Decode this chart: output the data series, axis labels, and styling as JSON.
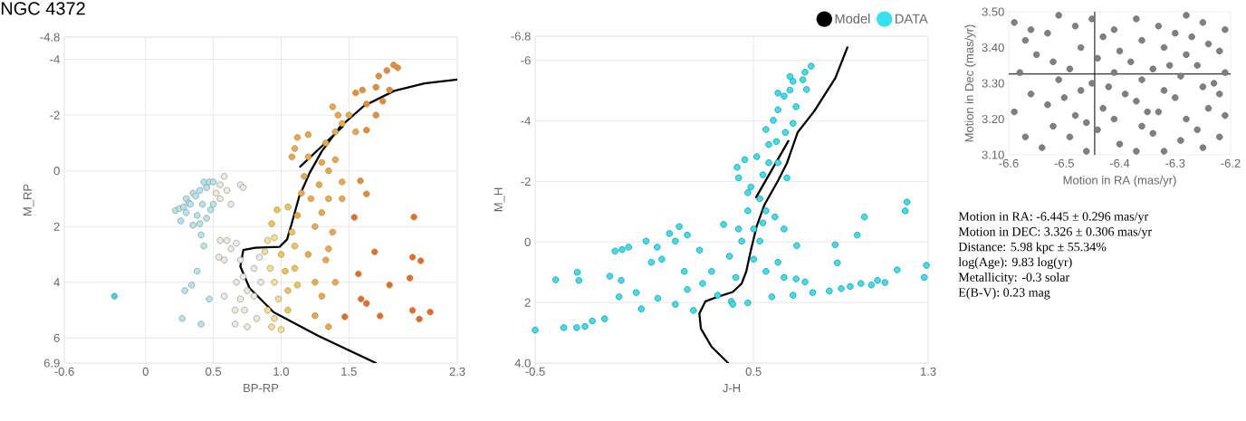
{
  "chart_data": [
    {
      "type": "scatter",
      "title": "NGC 4372",
      "xlabel": "BP-RP",
      "ylabel": "M_RP",
      "xlim": [
        -0.6,
        2.3
      ],
      "ylim": [
        6.9,
        -4.8
      ],
      "xticks": [
        -0.6,
        0,
        0.5,
        {
          "value": 1,
          "label": "1.0"
        },
        1.5,
        2.3
      ],
      "yticks": [
        -4.8,
        -4,
        -2,
        0,
        2,
        4,
        6,
        6.9
      ],
      "grid": true,
      "series": [
        {
          "type": "line",
          "color": "#000000",
          "x": [
            1.7,
            1.278,
            0.944,
            0.766,
            0.699,
            0.721,
            0.81,
            0.988,
            1.044,
            1.077,
            1.133,
            1.211,
            1.3,
            1.433,
            1.611,
            1.834,
            2.057,
            2.3,
            1.8,
            1.455,
            1.14
          ],
          "values": [
            6.9,
            5.93,
            5.07,
            4.2,
            3.43,
            2.84,
            2.76,
            2.73,
            2.46,
            1.91,
            0.93,
            0.07,
            -0.7,
            -1.57,
            -2.33,
            -2.87,
            -3.14,
            -3.28,
            null,
            -1.59,
            -0.15
          ]
        },
        {
          "type": "scatter",
          "marker": "circle",
          "x": [
            0.22,
            0.25,
            0.28,
            0.3,
            0.32,
            0.35,
            0.37,
            0.4,
            0.43,
            0.45,
            0.47,
            0.5,
            0.42,
            0.38,
            0.35,
            0.4,
            0.45,
            0.48,
            0.3,
            0.26,
            0.52,
            0.55,
            0.58,
            0.6,
            0.63,
            0.7,
            0.72,
            0.55,
            0.5,
            0.33,
            0.41,
            0.43,
            0.38,
            0.34,
            0.29,
            0.47,
            0.27,
            0.41,
            0.55,
            0.6,
            0.58,
            0.54,
            0.63,
            0.58,
            -0.23,
            0.67,
            0.7,
            0.72,
            0.67,
            0.7,
            0.66,
            0.73,
            0.66,
            0.75,
            0.75,
            0.8,
            0.8,
            0.82,
            0.85,
            0.84,
            0.88,
            0.9,
            0.95,
            0.92,
            0.95,
            0.98,
            0.9,
            0.95,
            0.93,
            1.0,
            1.0,
            1.03,
            1.05,
            1.05,
            1.08,
            1.1,
            0.97,
            1.05,
            0.93,
            1.1,
            1.12,
            1.12,
            1.15,
            1.17,
            1.2,
            1.22,
            1.25,
            1.2,
            1.25,
            1.3,
            1.28,
            1.3,
            1.33,
            1.35,
            1.35,
            1.38,
            1.33,
            1.3,
            1.4,
            1.42,
            1.38,
            1.45,
            1.45,
            1.4,
            1.35,
            1.25,
            1.35,
            1.5,
            1.55,
            1.1,
            1.12,
            1.08,
            1.2,
            1.4,
            1.45,
            1.55,
            1.6,
            1.63,
            1.7,
            1.72,
            1.78,
            1.83,
            1.86,
            1.8,
            1.75,
            1.7,
            1.63,
            1.585,
            1.63,
            1.54,
            1.57,
            1.59,
            1.63,
            1.47,
            1.73,
            1.8,
            1.95,
            1.97,
            2.03,
            1.97,
            2.02,
            2.1,
            1.98,
            1.69
          ],
          "values": [
            1.42,
            1.35,
            1.3,
            1.0,
            1.15,
            0.8,
            0.9,
            0.7,
            0.4,
            0.6,
            0.4,
            0.4,
            1.2,
            1.6,
            1.95,
            1.9,
            1.7,
            1.4,
            1.5,
            1.8,
            0.8,
            1.0,
            0.2,
            0.7,
            1.2,
            0.5,
            0.6,
            0.5,
            1.2,
            1.2,
            2.3,
            2.7,
            3.6,
            4.1,
            4.3,
            4.6,
            5.3,
            5.5,
            2.5,
            2.5,
            3.2,
            3.1,
            2.8,
            4.5,
            4.5,
            2.6,
            3.2,
            3.8,
            4.0,
            4.6,
            5.0,
            5.0,
            5.5,
            5.6,
            4.3,
            3.5,
            4.5,
            5.3,
            4.0,
            3.1,
            2.9,
            2.5,
            2.4,
            3.5,
            4.0,
            4.6,
            5.0,
            5.3,
            5.6,
            5.7,
            3.0,
            3.6,
            4.3,
            5.0,
            2.2,
            2.7,
            1.4,
            1.3,
            1.9,
            3.5,
            4.1,
            1.6,
            0.8,
            0.2,
            -0.5,
            1.0,
            2.0,
            3.0,
            4.0,
            1.5,
            0.5,
            -0.3,
            -1.0,
            0.0,
            1.0,
            2.2,
            3.2,
            4.5,
            -1.4,
            -2.0,
            -2.3,
            -1.7,
            0.4,
            4.0,
            2.8,
            5.2,
            5.6,
            -2.0,
            -1.4,
            -0.8,
            -1.2,
            -0.5,
            -1.3,
            -0.4,
            1.0,
            -2.8,
            -2.9,
            -2.4,
            -3.0,
            -3.4,
            -3.6,
            -3.8,
            -3.7,
            -2.9,
            -2.5,
            -2.0,
            -1.46,
            0.36,
            0.83,
            1.67,
            3.7,
            4.6,
            4.76,
            5.24,
            5.21,
            4.1,
            3.85,
            3.1,
            3.23,
            5.01,
            5.32,
            5.07,
            1.66,
            2.91
          ],
          "colors": [
            "#aee8ee",
            "#aee8ee",
            "#aee8ee",
            "#aee8ee",
            "#aee8ee",
            "#aee8ee",
            "#aee8ee",
            "#aee8ee",
            "#aee8ee",
            "#aee8ee",
            "#aee8ee",
            "#aee8ee",
            "#aee8ee",
            "#aee8ee",
            "#aee8ee",
            "#aee8ee",
            "#aee8ee",
            "#aee8ee",
            "#aee8ee",
            "#aee8ee",
            "#ebebdf",
            "#ebebdf",
            "#ebebdf",
            "#ebebdf",
            "#ebebdf",
            "#ebebdf",
            "#ebebdf",
            "#ebebdf",
            "#aee8ee",
            "#aee8ee",
            "#aee8ee",
            "#aee8ee",
            "#aee8ee",
            "#aee8ee",
            "#aee8ee",
            "#aee8ee",
            "#aee8ee",
            "#aee8ee",
            "#ebebdf",
            "#ebebdf",
            "#ebebdf",
            "#ebebdf",
            "#ebebdf",
            "#ebebdf",
            "#33d6ea",
            "#ebebdf",
            "#ebebdf",
            "#ebebdf",
            "#ebebdf",
            "#ebebdf",
            "#ebebdf",
            "#ebebdf",
            "#ebebdf",
            "#ebebdf",
            "#ebebdf",
            "#ebebdf",
            "#ebebdf",
            "#ebebdf",
            "#ebebdf",
            "#ebebdf",
            "#f8df88",
            "#f8df88",
            "#f8df88",
            "#f8df88",
            "#f8df88",
            "#f8df88",
            "#f8df88",
            "#f8df88",
            "#f8df88",
            "#f8df88",
            "#f6c445",
            "#f6c445",
            "#f6c445",
            "#f6c445",
            "#f6c445",
            "#f6c445",
            "#f6c445",
            "#f6c445",
            "#f6c445",
            "#f6c445",
            "#f6c445",
            "#f5a636",
            "#f5a636",
            "#f5a636",
            "#f5a636",
            "#f5a636",
            "#f5a636",
            "#f5a636",
            "#f5a636",
            "#f5a636",
            "#f5a636",
            "#f5a636",
            "#f5a636",
            "#f5a636",
            "#f5a636",
            "#f5a636",
            "#f5a636",
            "#f5a636",
            "#f5a636",
            "#f5a636",
            "#f5a636",
            "#f5a636",
            "#f5a636",
            "#f5a636",
            "#f5a636",
            "#f5a636",
            "#f5a636",
            "#f5a636",
            "#f5a636",
            "#f5a636",
            "#f5a636",
            "#f5a636",
            "#f5a636",
            "#f5a636",
            "#f5a636",
            "#f08a22",
            "#f08a22",
            "#f08a22",
            "#f08a22",
            "#f08a22",
            "#f08a22",
            "#f08a22",
            "#f08a22",
            "#f08a22",
            "#f08a22",
            "#f08a22",
            "#f08a22",
            "#f08a22",
            "#f08a22",
            "#f06a12",
            "#f06a12",
            "#f06a12",
            "#f06a12",
            "#f06a12",
            "#f06a12",
            "#f06a12",
            "#f06a12",
            "#f06a12",
            "#f06a12",
            "#f06a12",
            "#f06a12",
            "#f06a12",
            "#f06a12",
            "#f06a12"
          ]
        }
      ]
    },
    {
      "type": "scatter",
      "xlabel": "J-H",
      "ylabel": "M_H",
      "xlim": [
        -0.5,
        1.3
      ],
      "ylim": [
        4.0,
        -6.8
      ],
      "xticks": [
        -0.5,
        0.5,
        1.3
      ],
      "yticks": [
        -6.8,
        -6,
        -4,
        -2,
        0,
        2,
        {
          "value": 4,
          "label": "4.0"
        }
      ],
      "grid": true,
      "legend": "top right",
      "series": [
        {
          "type": "line",
          "name": "Model",
          "color": "#000000",
          "x": [
            0.384,
            0.308,
            0.259,
            0.252,
            0.28,
            0.336,
            0.405,
            0.446,
            0.467,
            0.488,
            0.515,
            0.55,
            0.612,
            0.654,
            0.702,
            0.778,
            0.875,
            0.93,
            0.8,
            0.66,
            0.512
          ],
          "values": [
            4.0,
            3.46,
            2.86,
            2.36,
            1.96,
            1.81,
            1.65,
            1.37,
            0.97,
            0.27,
            -0.53,
            -1.23,
            -2.02,
            -2.62,
            -3.62,
            -4.32,
            -5.42,
            -6.43,
            null,
            -3.34,
            -1.48
          ]
        },
        {
          "type": "scatter",
          "name": "DATA",
          "color": "#36e2f0",
          "marker": "circle",
          "x": [
            -0.406,
            -0.307,
            -0.3,
            -0.369,
            -0.31,
            -0.272,
            -0.238,
            -0.182,
            -0.158,
            -0.134,
            -0.102,
            -0.072,
            -0.116,
            -0.106,
            -0.037,
            -0.014,
            0.008,
            0.032,
            0.059,
            0.08,
            0.062,
            0.115,
            0.16,
            0.142,
            0.197,
            0.183,
            0.142,
            0.197,
            0.253,
            0.267,
            0.225,
            0.308,
            0.336,
            0.363,
            0.39,
            0.419,
            0.398,
            0.432,
            0.432,
            0.425,
            0.46,
            0.488,
            0.474,
            0.515,
            0.543,
            0.557,
            0.591,
            0.605,
            0.57,
            0.612,
            0.64,
            0.667,
            0.681,
            0.695,
            0.667,
            0.736,
            0.764,
            0.743,
            0.726,
            0.612,
            0.681,
            0.646,
            0.653,
            0.557,
            0.598,
            0.64,
            0.529,
            0.501,
            0.557,
            0.612,
            0.64,
            0.695,
            0.681,
            0.698,
            0.736,
            0.771,
            0.584,
            0.474,
            0.405,
            0.847,
            0.874,
            0.884,
            0.902,
            0.943,
            0.975,
            1.008,
            0.992,
            1.04,
            1.068,
            1.102,
            1.158,
            1.195,
            1.203,
            1.282,
            1.292,
            -0.5,
            0.474,
            0.529,
            0.501,
            0.446,
            0.543,
            0.57,
            0.612
          ],
          "values": [
            1.25,
            1.0,
            1.27,
            2.83,
            2.83,
            2.79,
            2.61,
            2.54,
            1.13,
            0.3,
            0.25,
            0.17,
            1.81,
            1.27,
            1.67,
            2.21,
            -0.03,
            0.67,
            0.17,
            0.57,
            1.86,
            -0.28,
            -0.51,
            -0.03,
            -0.23,
            0.97,
            2.06,
            1.57,
            0.27,
            1.37,
            2.26,
            0.97,
            1.76,
            -0.58,
            0.47,
            1.17,
            1.96,
            -0.43,
            -2.12,
            -2.47,
            -2.72,
            -1.82,
            -1.03,
            -2.82,
            -2.22,
            -3.72,
            -4.02,
            -3.32,
            -3.22,
            -4.92,
            -4.82,
            -5.02,
            -5.31,
            -4.47,
            -5.47,
            -5.61,
            -5.81,
            -5.04,
            -5.36,
            -4.37,
            -3.92,
            -3.62,
            -2.12,
            -1.03,
            -0.83,
            -0.43,
            -0.03,
            0.57,
            0.97,
            0.67,
            1.17,
            1.22,
            1.76,
            0.12,
            1.32,
            1.67,
            1.81,
            2.01,
            2.06,
            1.62,
            0.09,
            0.69,
            1.54,
            1.47,
            -0.23,
            -0.83,
            1.37,
            1.42,
            1.27,
            1.34,
            0.92,
            -1.03,
            -1.32,
            1.17,
            0.77,
            2.91,
            -1.63,
            -1.43,
            -0.43,
            -0.03,
            -0.63,
            -2.62,
            -2.62
          ]
        }
      ]
    },
    {
      "type": "scatter",
      "xlabel": "Motion in RA (mas/yr)",
      "ylabel": "Motion in Dec (mas/yr)",
      "xlim": [
        -6.6,
        -6.2
      ],
      "ylim": [
        3.1,
        3.5
      ],
      "xticks": [
        -6.6,
        -6.5,
        -6.4,
        -6.3,
        -6.2
      ],
      "yticks": [
        {
          "value": 3.1,
          "label": "3.10"
        },
        {
          "value": 3.2,
          "label": "3.20"
        },
        {
          "value": 3.3,
          "label": "3.30"
        },
        {
          "value": 3.4,
          "label": "3.40"
        },
        {
          "value": 3.5,
          "label": "3.50"
        }
      ],
      "ref_lines": [
        {
          "axis": "x",
          "value": -6.445,
          "color": "#000000"
        },
        {
          "axis": "y",
          "value": 3.326,
          "color": "#000000"
        }
      ],
      "series": [
        {
          "type": "scatter",
          "color": "#808080",
          "marker": "circle",
          "x": [
            -6.59,
            -6.57,
            -6.55,
            -6.58,
            -6.56,
            -6.59,
            -6.57,
            -6.54,
            -6.52,
            -6.53,
            -6.51,
            -6.52,
            -6.53,
            -6.51,
            -6.48,
            -6.47,
            -6.49,
            -6.47,
            -6.48,
            -6.49,
            -6.46,
            -6.44,
            -6.43,
            -6.45,
            -6.44,
            -6.43,
            -6.45,
            -6.41,
            -6.4,
            -6.41,
            -6.39,
            -6.41,
            -6.4,
            -6.37,
            -6.36,
            -6.37,
            -6.36,
            -6.38,
            -6.36,
            -6.37,
            -6.33,
            -6.32,
            -6.34,
            -6.32,
            -6.33,
            -6.34,
            -6.32,
            -6.29,
            -6.28,
            -6.3,
            -6.29,
            -6.28,
            -6.3,
            -6.28,
            -6.25,
            -6.24,
            -6.26,
            -6.25,
            -6.24,
            -6.26,
            -6.25,
            -6.22,
            -6.21,
            -6.22,
            -6.21,
            -6.22,
            -6.21,
            -6.56,
            -6.5,
            -6.46,
            -6.42,
            -6.35,
            -6.31,
            -6.27,
            -6.23
          ],
          "values": [
            3.47,
            3.42,
            3.38,
            3.33,
            3.27,
            3.22,
            3.15,
            3.12,
            3.18,
            3.24,
            3.31,
            3.36,
            3.44,
            3.49,
            3.46,
            3.4,
            3.34,
            3.28,
            3.21,
            3.15,
            3.11,
            3.17,
            3.23,
            3.3,
            3.37,
            3.43,
            3.48,
            3.45,
            3.39,
            3.33,
            3.27,
            3.2,
            3.13,
            3.11,
            3.18,
            3.25,
            3.31,
            3.36,
            3.42,
            3.48,
            3.46,
            3.4,
            3.34,
            3.28,
            3.22,
            3.16,
            3.11,
            3.14,
            3.2,
            3.26,
            3.32,
            3.38,
            3.44,
            3.49,
            3.47,
            3.41,
            3.35,
            3.29,
            3.23,
            3.17,
            3.12,
            3.15,
            3.21,
            3.27,
            3.33,
            3.39,
            3.45,
            3.45,
            3.26,
            3.19,
            3.29,
            3.22,
            3.35,
            3.43,
            3.3
          ]
        }
      ]
    },
    {
      "type": "other",
      "annotations": [
        "Motion in RA: -6.445 ± 0.296 mas/yr",
        "Motion in DEC: 3.326 ± 0.306 mas/yr",
        "Distance: 5.98 kpc ± 55.34%",
        "log(Age): 9.83 log(yr)",
        "Metallicity: -0.3 solar",
        "E(B-V): 0.23 mag"
      ]
    }
  ]
}
